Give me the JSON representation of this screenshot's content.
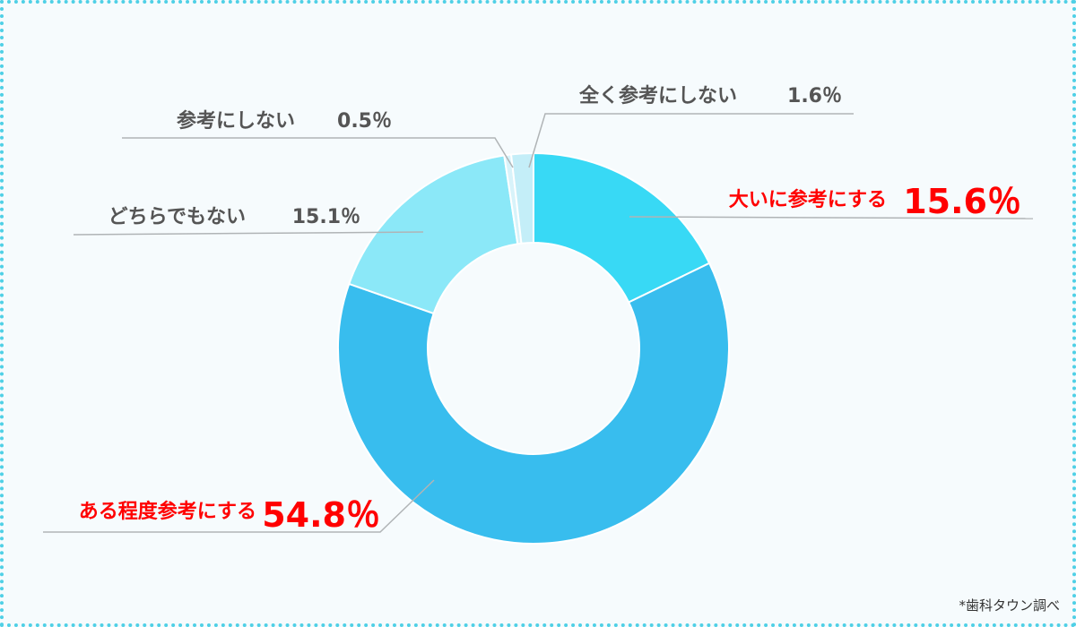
{
  "chart_data": {
    "type": "pie",
    "donut": true,
    "categories": [
      "大いに参考にする",
      "ある程度参考にする",
      "どちらでもない",
      "参考にしない",
      "全く参考にしない"
    ],
    "values": [
      15.6,
      54.8,
      15.1,
      0.5,
      1.6
    ],
    "value_labels": [
      "15.6％",
      "54.8％",
      "15.1％",
      "0.5％",
      "1.6％"
    ],
    "colors": [
      "#38d9f5",
      "#38bdee",
      "#8be8f8",
      "#d8f3fa",
      "#c4eef8"
    ],
    "highlight_color": "#ff0000",
    "label_color": "#555555",
    "highlighted": [
      true,
      true,
      false,
      false,
      false
    ]
  },
  "footnote": "*歯科タウン調べ"
}
